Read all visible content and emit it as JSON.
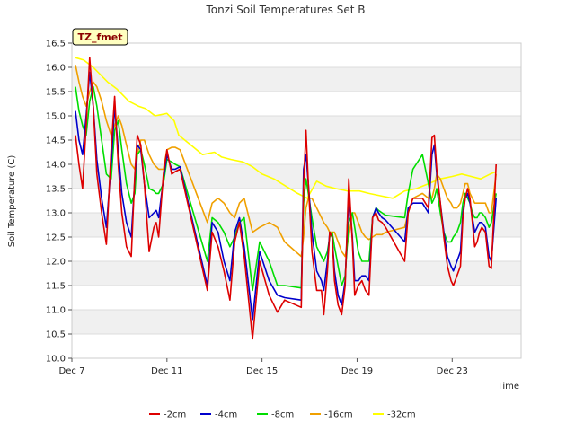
{
  "chart_data": {
    "type": "line",
    "title": "Tonzi Soil Temperatures Set B",
    "xlabel": "Time",
    "ylabel": "Soil Temperature (C)",
    "badge": "TZ_fmet",
    "xlim": [
      7,
      25.9
    ],
    "ylim": [
      10.0,
      16.5
    ],
    "yticks": [
      10.0,
      10.5,
      11.0,
      11.5,
      12.0,
      12.5,
      13.0,
      13.5,
      14.0,
      14.5,
      15.0,
      15.5,
      16.0,
      16.5
    ],
    "ytick_labels": [
      "10.0",
      "10.5",
      "11.0",
      "11.5",
      "12.0",
      "12.5",
      "13.0",
      "13.5",
      "14.0",
      "14.5",
      "15.0",
      "15.5",
      "16.0",
      "16.5"
    ],
    "xticks": [
      7,
      11,
      15,
      19,
      23
    ],
    "xtick_labels": [
      "Dec 7",
      "Dec 11",
      "Dec 15",
      "Dec 19",
      "Dec 23"
    ],
    "grid": true,
    "legend_position": "bottom",
    "series": [
      {
        "name": "-2cm",
        "color": "#dd0000",
        "x": [
          7.15,
          7.3,
          7.45,
          7.6,
          7.75,
          7.9,
          8.05,
          8.25,
          8.45,
          8.65,
          8.8,
          8.95,
          9.1,
          9.3,
          9.5,
          9.65,
          9.75,
          9.9,
          10.05,
          10.25,
          10.45,
          10.55,
          10.65,
          10.85,
          11.0,
          11.2,
          11.35,
          11.55,
          12.7,
          12.9,
          13.15,
          13.4,
          13.65,
          13.85,
          14.05,
          14.25,
          14.6,
          14.9,
          15.3,
          15.65,
          15.95,
          16.65,
          16.75,
          16.85,
          16.95,
          17.1,
          17.3,
          17.5,
          17.6,
          17.75,
          17.85,
          17.95,
          18.05,
          18.2,
          18.35,
          18.5,
          18.65,
          18.8,
          18.9,
          19.05,
          19.2,
          19.35,
          19.5,
          19.65,
          19.8,
          19.9,
          20.05,
          20.2,
          21.0,
          21.15,
          21.35,
          21.75,
          22.0,
          22.15,
          22.25,
          22.35,
          22.5,
          22.65,
          22.8,
          22.95,
          23.05,
          23.2,
          23.35,
          23.45,
          23.55,
          23.65,
          23.75,
          23.85,
          23.95,
          24.05,
          24.15,
          24.25,
          24.4,
          24.55,
          24.65,
          24.85
        ],
        "y": [
          14.6,
          14.0,
          13.5,
          14.8,
          16.2,
          15.2,
          13.8,
          13.0,
          12.35,
          14.3,
          15.4,
          14.0,
          13.0,
          12.3,
          12.1,
          13.8,
          14.6,
          14.4,
          13.6,
          12.2,
          12.7,
          12.8,
          12.5,
          13.8,
          14.3,
          13.8,
          13.85,
          13.9,
          11.4,
          12.6,
          12.3,
          11.8,
          11.2,
          12.4,
          12.8,
          12.1,
          10.4,
          12.0,
          11.3,
          10.95,
          11.2,
          11.05,
          13.6,
          14.7,
          13.6,
          12.2,
          11.4,
          11.4,
          10.9,
          11.8,
          12.6,
          12.5,
          11.6,
          11.1,
          10.9,
          11.5,
          13.7,
          12.4,
          11.3,
          11.5,
          11.6,
          11.4,
          11.3,
          12.9,
          13.0,
          12.85,
          12.8,
          12.7,
          12.0,
          13.0,
          13.3,
          13.3,
          13.1,
          14.55,
          14.6,
          13.9,
          13.2,
          12.5,
          11.9,
          11.6,
          11.5,
          11.7,
          11.9,
          12.9,
          13.3,
          13.5,
          13.3,
          12.8,
          12.3,
          12.4,
          12.6,
          12.7,
          12.6,
          11.9,
          11.85,
          14.0
        ]
      },
      {
        "name": "-4cm",
        "color": "#0000cc",
        "x": [
          7.15,
          7.3,
          7.45,
          7.6,
          7.75,
          7.9,
          8.05,
          8.25,
          8.45,
          8.65,
          8.8,
          8.95,
          9.1,
          9.3,
          9.5,
          9.65,
          9.75,
          9.9,
          10.05,
          10.25,
          10.45,
          10.55,
          10.65,
          10.85,
          11.0,
          11.2,
          11.35,
          11.55,
          12.7,
          12.9,
          13.15,
          13.4,
          13.65,
          13.85,
          14.05,
          14.25,
          14.6,
          14.9,
          15.3,
          15.65,
          15.95,
          16.65,
          16.75,
          16.85,
          16.95,
          17.1,
          17.3,
          17.5,
          17.6,
          17.75,
          17.85,
          17.95,
          18.05,
          18.2,
          18.35,
          18.5,
          18.65,
          18.8,
          18.9,
          19.05,
          19.2,
          19.35,
          19.5,
          19.65,
          19.8,
          19.9,
          20.05,
          20.2,
          21.0,
          21.15,
          21.35,
          21.75,
          22.0,
          22.15,
          22.25,
          22.35,
          22.5,
          22.65,
          22.8,
          22.95,
          23.05,
          23.2,
          23.35,
          23.45,
          23.55,
          23.65,
          23.75,
          23.85,
          23.95,
          24.05,
          24.15,
          24.25,
          24.4,
          24.55,
          24.65,
          24.85
        ],
        "y": [
          15.1,
          14.5,
          14.2,
          15.0,
          15.9,
          15.2,
          14.1,
          13.3,
          12.7,
          14.0,
          15.2,
          14.3,
          13.4,
          12.8,
          12.5,
          13.7,
          14.4,
          14.3,
          13.6,
          12.9,
          13.0,
          13.05,
          12.9,
          13.7,
          14.2,
          13.9,
          13.9,
          13.95,
          11.5,
          12.8,
          12.6,
          12.0,
          11.6,
          12.6,
          12.9,
          12.3,
          10.8,
          12.2,
          11.6,
          11.3,
          11.25,
          11.2,
          13.9,
          14.2,
          13.6,
          12.6,
          11.8,
          11.6,
          11.4,
          12.0,
          12.6,
          12.5,
          11.8,
          11.3,
          11.1,
          11.6,
          13.4,
          12.5,
          11.6,
          11.6,
          11.7,
          11.7,
          11.6,
          12.9,
          13.1,
          13.0,
          12.9,
          12.85,
          12.4,
          13.1,
          13.2,
          13.2,
          13.0,
          14.2,
          14.4,
          13.8,
          13.2,
          12.6,
          12.1,
          11.9,
          11.8,
          12.0,
          12.2,
          13.0,
          13.3,
          13.4,
          13.2,
          12.9,
          12.6,
          12.7,
          12.8,
          12.8,
          12.7,
          12.1,
          12.0,
          13.3
        ]
      },
      {
        "name": "-8cm",
        "color": "#00dd00",
        "x": [
          7.15,
          7.3,
          7.45,
          7.6,
          7.75,
          7.9,
          8.05,
          8.25,
          8.45,
          8.65,
          8.8,
          8.95,
          9.1,
          9.3,
          9.5,
          9.65,
          9.75,
          9.9,
          10.05,
          10.25,
          10.45,
          10.55,
          10.65,
          10.85,
          11.0,
          11.2,
          11.35,
          11.55,
          12.7,
          12.9,
          13.15,
          13.4,
          13.65,
          13.85,
          14.05,
          14.25,
          14.6,
          14.9,
          15.3,
          15.65,
          15.95,
          16.65,
          16.75,
          16.85,
          16.95,
          17.1,
          17.3,
          17.5,
          17.6,
          17.75,
          17.85,
          17.95,
          18.05,
          18.2,
          18.35,
          18.5,
          18.65,
          18.8,
          18.9,
          19.05,
          19.2,
          19.35,
          19.5,
          19.65,
          19.8,
          19.9,
          20.05,
          20.2,
          21.0,
          21.15,
          21.35,
          21.75,
          22.0,
          22.15,
          22.25,
          22.35,
          22.5,
          22.65,
          22.8,
          22.95,
          23.05,
          23.2,
          23.35,
          23.45,
          23.55,
          23.65,
          23.75,
          23.85,
          23.95,
          24.05,
          24.15,
          24.25,
          24.4,
          24.55,
          24.65,
          24.85
        ],
        "y": [
          15.6,
          15.1,
          14.8,
          14.6,
          15.3,
          15.6,
          15.2,
          14.5,
          13.8,
          13.7,
          14.7,
          14.9,
          14.3,
          13.6,
          13.2,
          13.4,
          14.2,
          14.3,
          14.0,
          13.5,
          13.45,
          13.4,
          13.4,
          13.6,
          14.1,
          14.05,
          14.0,
          13.95,
          12.0,
          12.9,
          12.8,
          12.6,
          12.3,
          12.5,
          12.8,
          12.9,
          11.4,
          12.4,
          12.0,
          11.5,
          11.5,
          11.45,
          13.2,
          13.7,
          13.4,
          12.9,
          12.3,
          12.1,
          12.0,
          12.2,
          12.5,
          12.6,
          12.3,
          11.9,
          11.5,
          11.7,
          12.8,
          13.0,
          12.7,
          12.2,
          12.0,
          12.0,
          12.0,
          12.9,
          13.1,
          13.05,
          13.0,
          12.95,
          12.9,
          13.4,
          13.9,
          14.2,
          13.6,
          13.2,
          13.3,
          13.5,
          13.0,
          12.6,
          12.4,
          12.4,
          12.5,
          12.6,
          12.8,
          13.2,
          13.4,
          13.3,
          13.2,
          13.0,
          12.9,
          12.9,
          13.0,
          13.0,
          12.9,
          12.7,
          12.8,
          13.4
        ]
      },
      {
        "name": "-16cm",
        "color": "#f0a000",
        "x": [
          7.15,
          7.3,
          7.45,
          7.6,
          7.75,
          7.9,
          8.05,
          8.25,
          8.45,
          8.65,
          8.8,
          8.95,
          9.1,
          9.3,
          9.5,
          9.65,
          9.75,
          9.9,
          10.05,
          10.25,
          10.45,
          10.55,
          10.65,
          10.85,
          11.0,
          11.2,
          11.35,
          11.55,
          12.7,
          12.9,
          13.15,
          13.4,
          13.65,
          13.85,
          14.05,
          14.25,
          14.6,
          14.9,
          15.3,
          15.65,
          15.95,
          16.65,
          16.75,
          16.85,
          16.95,
          17.1,
          17.3,
          17.5,
          17.6,
          17.75,
          17.85,
          17.95,
          18.05,
          18.2,
          18.35,
          18.5,
          18.65,
          18.8,
          18.9,
          19.05,
          19.2,
          19.35,
          19.5,
          19.65,
          19.8,
          19.9,
          20.05,
          20.2,
          21.0,
          21.15,
          21.35,
          21.75,
          22.0,
          22.15,
          22.25,
          22.35,
          22.5,
          22.65,
          22.8,
          22.95,
          23.05,
          23.2,
          23.35,
          23.45,
          23.55,
          23.65,
          23.75,
          23.85,
          23.95,
          24.05,
          24.15,
          24.25,
          24.4,
          24.55,
          24.65,
          24.85
        ],
        "y": [
          16.05,
          15.7,
          15.4,
          15.2,
          15.5,
          15.7,
          15.6,
          15.3,
          14.9,
          14.6,
          14.8,
          15.0,
          14.8,
          14.4,
          14.0,
          13.9,
          14.2,
          14.5,
          14.5,
          14.2,
          14.0,
          13.95,
          13.9,
          13.9,
          14.3,
          14.35,
          14.35,
          14.3,
          12.8,
          13.2,
          13.3,
          13.2,
          13.0,
          12.9,
          13.2,
          13.3,
          12.6,
          12.7,
          12.8,
          12.7,
          12.4,
          12.1,
          12.5,
          13.1,
          13.3,
          13.3,
          13.1,
          12.9,
          12.8,
          12.7,
          12.6,
          12.6,
          12.6,
          12.4,
          12.2,
          12.1,
          12.5,
          13.0,
          13.0,
          12.8,
          12.6,
          12.5,
          12.45,
          12.5,
          12.55,
          12.55,
          12.55,
          12.6,
          12.7,
          13.0,
          13.3,
          13.4,
          13.3,
          13.3,
          13.5,
          13.8,
          13.7,
          13.5,
          13.3,
          13.2,
          13.1,
          13.1,
          13.2,
          13.4,
          13.6,
          13.6,
          13.4,
          13.3,
          13.2,
          13.2,
          13.2,
          13.2,
          13.2,
          13.0,
          13.0,
          13.8
        ]
      },
      {
        "name": "-32cm",
        "color": "#ffff00",
        "x": [
          7.15,
          7.5,
          7.9,
          8.5,
          8.9,
          9.4,
          9.8,
          10.1,
          10.5,
          11.0,
          11.3,
          11.5,
          12.0,
          12.5,
          13.0,
          13.3,
          13.7,
          14.2,
          14.6,
          15.0,
          15.5,
          16.0,
          16.5,
          16.9,
          17.3,
          17.7,
          18.1,
          18.6,
          19.1,
          19.5,
          20.0,
          20.5,
          21.0,
          21.5,
          22.0,
          22.5,
          23.0,
          23.4,
          23.8,
          24.2,
          24.6,
          24.85
        ],
        "y": [
          16.2,
          16.15,
          16.0,
          15.7,
          15.55,
          15.3,
          15.2,
          15.15,
          15.0,
          15.05,
          14.9,
          14.6,
          14.4,
          14.2,
          14.25,
          14.15,
          14.1,
          14.05,
          13.95,
          13.8,
          13.7,
          13.55,
          13.4,
          13.3,
          13.65,
          13.55,
          13.5,
          13.45,
          13.45,
          13.4,
          13.35,
          13.3,
          13.45,
          13.5,
          13.6,
          13.7,
          13.75,
          13.8,
          13.75,
          13.7,
          13.8,
          13.85
        ]
      }
    ]
  }
}
